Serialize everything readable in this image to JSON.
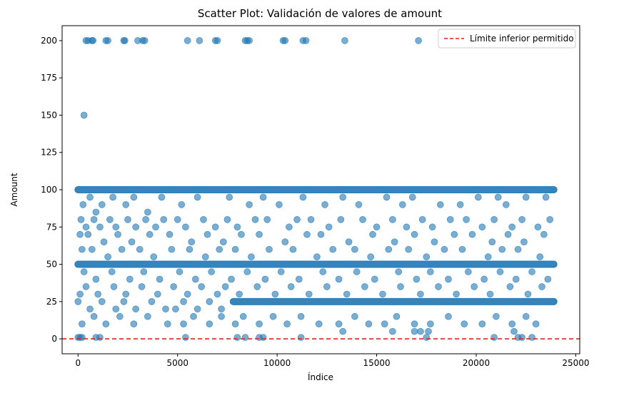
{
  "chart_data": {
    "type": "scatter",
    "title": "Scatter Plot: Validación de valores de amount",
    "xlabel": "Índice",
    "ylabel": "Amount",
    "xlim": [
      -800,
      25200
    ],
    "ylim": [
      -10,
      210
    ],
    "xticks": [
      0,
      5000,
      10000,
      15000,
      20000,
      25000
    ],
    "yticks": [
      0,
      25,
      50,
      75,
      100,
      125,
      150,
      175,
      200
    ],
    "grid": false,
    "legend_position": "top-right",
    "point_color": "#1f77b4",
    "point_alpha": 0.6,
    "reference_line": {
      "label": "Límite inferior permitido",
      "y": 0,
      "style": "dashed",
      "color": "#e8211c"
    },
    "dense_bands": [
      {
        "y": 100,
        "x_range": [
          0,
          23900
        ]
      },
      {
        "y": 50,
        "x_range": [
          0,
          23900
        ]
      },
      {
        "y": 25,
        "x_range": [
          7800,
          23900
        ]
      }
    ],
    "points": [
      [
        400,
        200
      ],
      [
        500,
        200
      ],
      [
        700,
        200
      ],
      [
        750,
        200
      ],
      [
        1400,
        200
      ],
      [
        1500,
        200
      ],
      [
        2300,
        200
      ],
      [
        2350,
        200
      ],
      [
        3000,
        200
      ],
      [
        3250,
        200
      ],
      [
        3350,
        200
      ],
      [
        5500,
        200
      ],
      [
        6100,
        200
      ],
      [
        6900,
        200
      ],
      [
        7000,
        200
      ],
      [
        8400,
        200
      ],
      [
        8500,
        200
      ],
      [
        8600,
        200
      ],
      [
        10300,
        200
      ],
      [
        10400,
        200
      ],
      [
        11300,
        200
      ],
      [
        11450,
        200
      ],
      [
        13400,
        200
      ],
      [
        17100,
        200
      ],
      [
        300,
        150
      ],
      [
        250,
        90
      ],
      [
        600,
        95
      ],
      [
        900,
        85
      ],
      [
        1200,
        90
      ],
      [
        1750,
        95
      ],
      [
        2400,
        90
      ],
      [
        2800,
        95
      ],
      [
        3500,
        85
      ],
      [
        4200,
        95
      ],
      [
        5200,
        90
      ],
      [
        6000,
        95
      ],
      [
        7600,
        95
      ],
      [
        8600,
        90
      ],
      [
        9300,
        95
      ],
      [
        10100,
        90
      ],
      [
        11300,
        95
      ],
      [
        12400,
        90
      ],
      [
        13300,
        95
      ],
      [
        14100,
        90
      ],
      [
        15500,
        95
      ],
      [
        16300,
        90
      ],
      [
        16800,
        95
      ],
      [
        18200,
        90
      ],
      [
        19200,
        90
      ],
      [
        20100,
        95
      ],
      [
        21100,
        95
      ],
      [
        21500,
        90
      ],
      [
        22500,
        95
      ],
      [
        23500,
        95
      ],
      [
        150,
        80
      ],
      [
        400,
        75
      ],
      [
        800,
        80
      ],
      [
        1100,
        75
      ],
      [
        1600,
        80
      ],
      [
        1900,
        75
      ],
      [
        2500,
        80
      ],
      [
        2900,
        75
      ],
      [
        3400,
        80
      ],
      [
        3900,
        75
      ],
      [
        4300,
        80
      ],
      [
        5000,
        80
      ],
      [
        5400,
        75
      ],
      [
        6300,
        80
      ],
      [
        6900,
        75
      ],
      [
        7500,
        80
      ],
      [
        8000,
        75
      ],
      [
        8900,
        80
      ],
      [
        9500,
        80
      ],
      [
        10600,
        75
      ],
      [
        11000,
        80
      ],
      [
        11700,
        80
      ],
      [
        12600,
        75
      ],
      [
        13200,
        80
      ],
      [
        14300,
        80
      ],
      [
        15000,
        75
      ],
      [
        15800,
        80
      ],
      [
        16500,
        75
      ],
      [
        17300,
        80
      ],
      [
        17800,
        75
      ],
      [
        18700,
        80
      ],
      [
        19500,
        80
      ],
      [
        20300,
        75
      ],
      [
        20900,
        80
      ],
      [
        21800,
        75
      ],
      [
        22300,
        80
      ],
      [
        23100,
        75
      ],
      [
        23700,
        80
      ],
      [
        100,
        70
      ],
      [
        500,
        70
      ],
      [
        1300,
        65
      ],
      [
        2000,
        70
      ],
      [
        2700,
        65
      ],
      [
        3600,
        70
      ],
      [
        4600,
        70
      ],
      [
        5700,
        65
      ],
      [
        6500,
        70
      ],
      [
        7300,
        65
      ],
      [
        8200,
        70
      ],
      [
        9100,
        70
      ],
      [
        10400,
        65
      ],
      [
        11500,
        70
      ],
      [
        12200,
        70
      ],
      [
        13600,
        65
      ],
      [
        14800,
        70
      ],
      [
        15900,
        65
      ],
      [
        16900,
        70
      ],
      [
        17900,
        65
      ],
      [
        18900,
        70
      ],
      [
        19800,
        70
      ],
      [
        20800,
        65
      ],
      [
        21600,
        70
      ],
      [
        22400,
        65
      ],
      [
        23400,
        70
      ],
      [
        200,
        60
      ],
      [
        700,
        60
      ],
      [
        1500,
        55
      ],
      [
        2200,
        60
      ],
      [
        3100,
        60
      ],
      [
        3800,
        55
      ],
      [
        4700,
        60
      ],
      [
        5600,
        60
      ],
      [
        6400,
        55
      ],
      [
        7100,
        60
      ],
      [
        7900,
        60
      ],
      [
        8700,
        55
      ],
      [
        9600,
        60
      ],
      [
        10800,
        60
      ],
      [
        12000,
        55
      ],
      [
        12800,
        60
      ],
      [
        13900,
        60
      ],
      [
        14700,
        55
      ],
      [
        15600,
        60
      ],
      [
        16600,
        60
      ],
      [
        17500,
        55
      ],
      [
        18400,
        60
      ],
      [
        19300,
        60
      ],
      [
        20600,
        55
      ],
      [
        21300,
        60
      ],
      [
        22100,
        60
      ],
      [
        23200,
        55
      ],
      [
        300,
        45
      ],
      [
        900,
        40
      ],
      [
        1700,
        45
      ],
      [
        2600,
        40
      ],
      [
        3300,
        45
      ],
      [
        4100,
        40
      ],
      [
        5100,
        45
      ],
      [
        5900,
        40
      ],
      [
        6700,
        45
      ],
      [
        7700,
        40
      ],
      [
        8500,
        45
      ],
      [
        9400,
        40
      ],
      [
        10200,
        45
      ],
      [
        11100,
        40
      ],
      [
        12300,
        45
      ],
      [
        13100,
        40
      ],
      [
        14000,
        45
      ],
      [
        14900,
        40
      ],
      [
        16100,
        45
      ],
      [
        17000,
        40
      ],
      [
        17700,
        45
      ],
      [
        18600,
        40
      ],
      [
        19600,
        45
      ],
      [
        20400,
        40
      ],
      [
        21200,
        45
      ],
      [
        22000,
        40
      ],
      [
        22800,
        45
      ],
      [
        23600,
        40
      ],
      [
        100,
        30
      ],
      [
        400,
        35
      ],
      [
        1000,
        30
      ],
      [
        1800,
        35
      ],
      [
        2400,
        30
      ],
      [
        3200,
        35
      ],
      [
        4000,
        30
      ],
      [
        4800,
        35
      ],
      [
        5500,
        30
      ],
      [
        6200,
        35
      ],
      [
        7000,
        30
      ],
      [
        7400,
        35
      ],
      [
        8100,
        30
      ],
      [
        9000,
        35
      ],
      [
        9900,
        30
      ],
      [
        10700,
        35
      ],
      [
        11600,
        30
      ],
      [
        12500,
        35
      ],
      [
        13500,
        30
      ],
      [
        14400,
        35
      ],
      [
        15300,
        30
      ],
      [
        16200,
        35
      ],
      [
        17200,
        30
      ],
      [
        18100,
        35
      ],
      [
        19000,
        30
      ],
      [
        19900,
        35
      ],
      [
        20700,
        30
      ],
      [
        21700,
        35
      ],
      [
        22600,
        30
      ],
      [
        23300,
        35
      ],
      [
        0,
        25
      ],
      [
        600,
        20
      ],
      [
        1200,
        25
      ],
      [
        1900,
        20
      ],
      [
        2300,
        25
      ],
      [
        2900,
        20
      ],
      [
        3700,
        25
      ],
      [
        4400,
        20
      ],
      [
        4900,
        20
      ],
      [
        5300,
        25
      ],
      [
        6000,
        20
      ],
      [
        6600,
        25
      ],
      [
        7200,
        20
      ],
      [
        200,
        10
      ],
      [
        800,
        15
      ],
      [
        1400,
        10
      ],
      [
        2100,
        15
      ],
      [
        2800,
        10
      ],
      [
        3500,
        15
      ],
      [
        4500,
        10
      ],
      [
        5300,
        10
      ],
      [
        5800,
        15
      ],
      [
        6600,
        10
      ],
      [
        7200,
        15
      ],
      [
        7900,
        10
      ],
      [
        8300,
        15
      ],
      [
        9100,
        10
      ],
      [
        9800,
        15
      ],
      [
        10500,
        10
      ],
      [
        11200,
        15
      ],
      [
        12100,
        10
      ],
      [
        13100,
        10
      ],
      [
        13900,
        15
      ],
      [
        14600,
        10
      ],
      [
        15400,
        10
      ],
      [
        16000,
        15
      ],
      [
        16900,
        10
      ],
      [
        17700,
        10
      ],
      [
        18600,
        15
      ],
      [
        19400,
        10
      ],
      [
        20300,
        10
      ],
      [
        21000,
        15
      ],
      [
        21800,
        10
      ],
      [
        22500,
        15
      ],
      [
        23000,
        10
      ],
      [
        13300,
        5
      ],
      [
        15800,
        5
      ],
      [
        16900,
        5
      ],
      [
        17200,
        5
      ],
      [
        17600,
        5
      ],
      [
        21900,
        5
      ],
      [
        0,
        1
      ],
      [
        100,
        1
      ],
      [
        200,
        1
      ],
      [
        900,
        1
      ],
      [
        1100,
        1
      ],
      [
        5400,
        1
      ],
      [
        8000,
        1
      ],
      [
        8400,
        1
      ],
      [
        9100,
        1
      ],
      [
        9300,
        1
      ],
      [
        11200,
        1
      ],
      [
        17500,
        1
      ],
      [
        20900,
        1
      ],
      [
        22100,
        1
      ],
      [
        22300,
        1
      ],
      [
        22800,
        1
      ]
    ]
  }
}
